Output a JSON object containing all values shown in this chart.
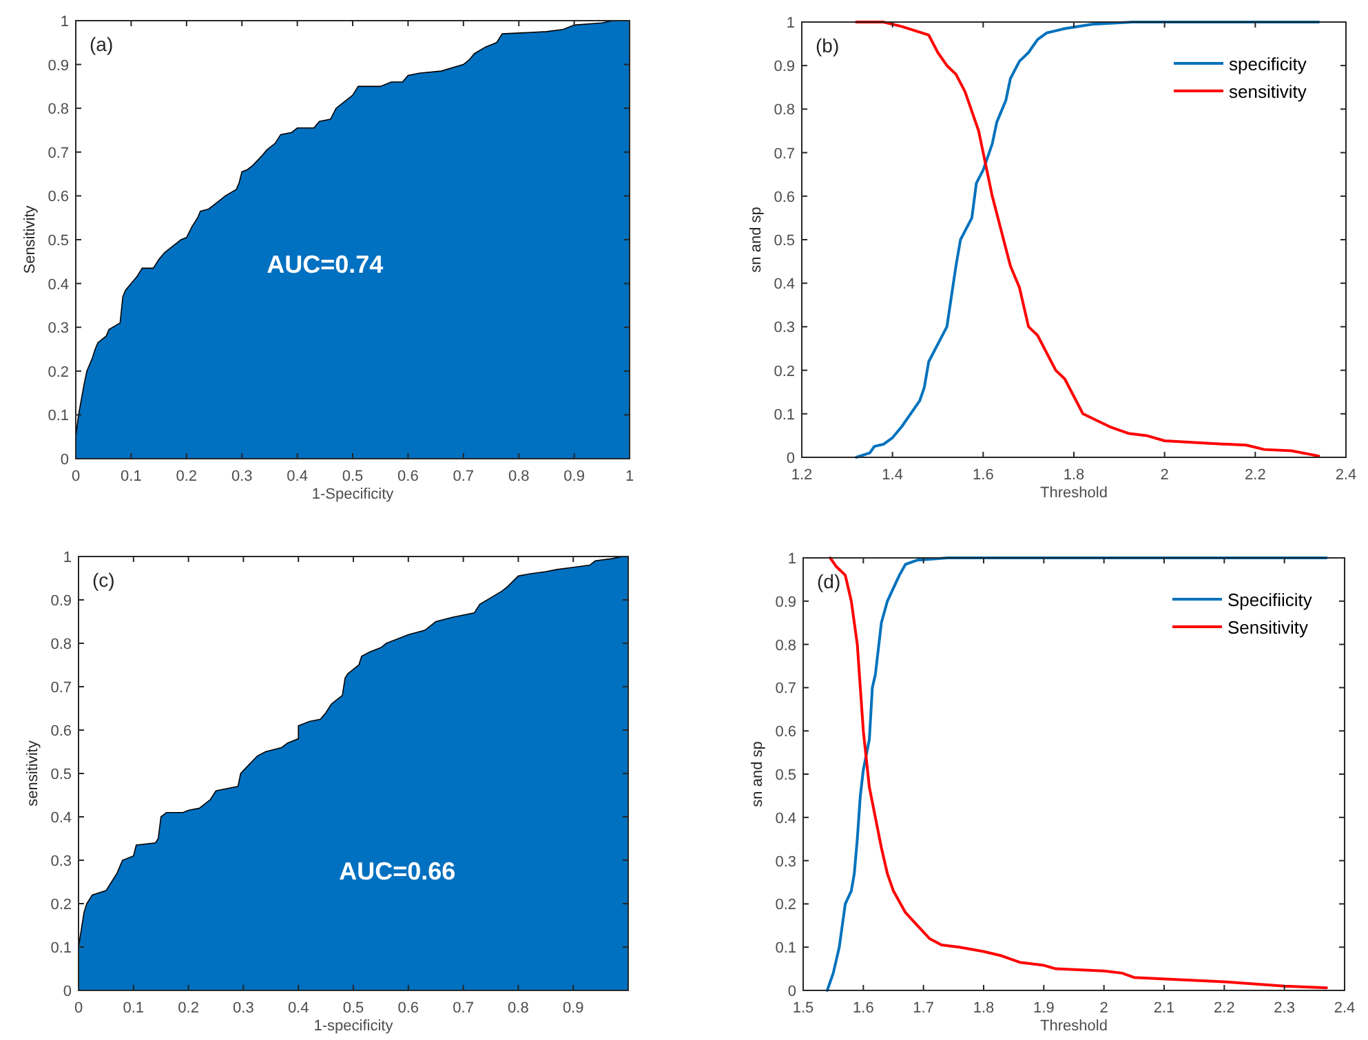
{
  "chart_data": [
    {
      "type": "area",
      "xlabel": "1-Specificity",
      "ylabel": "Sensitivity",
      "annotations": [
        "(a)",
        "AUC=0.74"
      ],
      "xlim": [
        0,
        1
      ],
      "ylim": [
        0,
        1
      ],
      "xticks": [
        0,
        0.1,
        0.2,
        0.3,
        0.4,
        0.5,
        0.6,
        0.7,
        0.8,
        0.9,
        1
      ],
      "yticks": [
        0,
        0.1,
        0.2,
        0.3,
        0.4,
        0.5,
        0.6,
        0.7,
        0.8,
        0.9,
        1
      ],
      "grid": false,
      "legend": false,
      "series": [
        {
          "color": "#0070c0",
          "x": [
            0,
            0,
            0.005,
            0.015,
            0.02,
            0.03,
            0.035,
            0.04,
            0.055,
            0.06,
            0.08,
            0.085,
            0.09,
            0.1,
            0.11,
            0.12,
            0.14,
            0.15,
            0.16,
            0.17,
            0.19,
            0.2,
            0.21,
            0.22,
            0.225,
            0.24,
            0.26,
            0.27,
            0.29,
            0.295,
            0.3,
            0.31,
            0.32,
            0.335,
            0.345,
            0.36,
            0.37,
            0.39,
            0.4,
            0.43,
            0.44,
            0.46,
            0.47,
            0.5,
            0.51,
            0.55,
            0.57,
            0.59,
            0.6,
            0.62,
            0.66,
            0.7,
            0.71,
            0.72,
            0.74,
            0.76,
            0.77,
            0.85,
            0.88,
            0.9,
            0.95,
            0.97,
            1
          ],
          "values": [
            0,
            0.05,
            0.1,
            0.17,
            0.2,
            0.23,
            0.25,
            0.265,
            0.28,
            0.295,
            0.31,
            0.37,
            0.385,
            0.4,
            0.415,
            0.435,
            0.435,
            0.455,
            0.47,
            0.48,
            0.5,
            0.505,
            0.53,
            0.55,
            0.565,
            0.57,
            0.59,
            0.6,
            0.615,
            0.63,
            0.655,
            0.66,
            0.67,
            0.69,
            0.705,
            0.72,
            0.74,
            0.745,
            0.755,
            0.755,
            0.77,
            0.775,
            0.8,
            0.83,
            0.85,
            0.85,
            0.86,
            0.86,
            0.875,
            0.88,
            0.885,
            0.9,
            0.91,
            0.925,
            0.94,
            0.95,
            0.97,
            0.975,
            0.98,
            0.99,
            0.995,
            1,
            1
          ]
        }
      ]
    },
    {
      "type": "line",
      "xlabel": "Threshold",
      "ylabel": "sn and sp",
      "annotations": [
        "(b)"
      ],
      "xlim": [
        1.2,
        2.4
      ],
      "ylim": [
        0,
        1
      ],
      "xticks": [
        1.2,
        1.4,
        1.6,
        1.8,
        2,
        2.2,
        2.4
      ],
      "yticks": [
        0,
        0.1,
        0.2,
        0.3,
        0.4,
        0.5,
        0.6,
        0.7,
        0.8,
        0.9,
        1
      ],
      "grid": false,
      "legend": "top right",
      "marker": "none",
      "line_style": "solid",
      "series": [
        {
          "name": "specificity",
          "color": "#0072bd",
          "x": [
            1.32,
            1.35,
            1.36,
            1.38,
            1.4,
            1.42,
            1.44,
            1.46,
            1.47,
            1.48,
            1.5,
            1.52,
            1.53,
            1.54,
            1.55,
            1.56,
            1.575,
            1.585,
            1.6,
            1.62,
            1.63,
            1.65,
            1.66,
            1.68,
            1.7,
            1.72,
            1.74,
            1.78,
            1.84,
            1.93,
            2.34
          ],
          "values": [
            0,
            0.01,
            0.025,
            0.03,
            0.045,
            0.07,
            0.1,
            0.13,
            0.16,
            0.22,
            0.26,
            0.3,
            0.37,
            0.44,
            0.5,
            0.52,
            0.55,
            0.63,
            0.66,
            0.72,
            0.77,
            0.82,
            0.87,
            0.91,
            0.93,
            0.96,
            0.975,
            0.985,
            0.995,
            1,
            1
          ]
        },
        {
          "name": "sensitivity",
          "color": "#ff0000",
          "x": [
            1.32,
            1.38,
            1.42,
            1.45,
            1.48,
            1.5,
            1.52,
            1.54,
            1.56,
            1.58,
            1.59,
            1.6,
            1.62,
            1.64,
            1.66,
            1.68,
            1.7,
            1.72,
            1.74,
            1.76,
            1.78,
            1.8,
            1.82,
            1.86,
            1.88,
            1.92,
            1.96,
            2,
            2.1,
            2.18,
            2.22,
            2.28,
            2.34
          ],
          "values": [
            1,
            1,
            0.99,
            0.98,
            0.97,
            0.93,
            0.9,
            0.88,
            0.84,
            0.78,
            0.75,
            0.7,
            0.6,
            0.52,
            0.44,
            0.39,
            0.3,
            0.28,
            0.24,
            0.2,
            0.18,
            0.14,
            0.1,
            0.08,
            0.07,
            0.055,
            0.05,
            0.038,
            0.032,
            0.028,
            0.018,
            0.015,
            0.003
          ]
        }
      ]
    },
    {
      "type": "area",
      "xlabel": "1-specificity",
      "ylabel": "sensitivity",
      "annotations": [
        "(c)",
        "AUC=0.66"
      ],
      "xlim": [
        0,
        1
      ],
      "ylim": [
        0,
        1
      ],
      "xticks": [
        0,
        0.1,
        0.2,
        0.3,
        0.4,
        0.5,
        0.6,
        0.7,
        0.8,
        0.9
      ],
      "yticks": [
        0,
        0.1,
        0.2,
        0.3,
        0.4,
        0.5,
        0.6,
        0.7,
        0.8,
        0.9,
        1
      ],
      "grid": false,
      "legend": false,
      "series": [
        {
          "color": "#0070c0",
          "x": [
            0,
            0,
            0.01,
            0.015,
            0.025,
            0.05,
            0.06,
            0.07,
            0.08,
            0.1,
            0.105,
            0.14,
            0.145,
            0.15,
            0.16,
            0.19,
            0.2,
            0.22,
            0.23,
            0.24,
            0.25,
            0.29,
            0.295,
            0.31,
            0.325,
            0.34,
            0.37,
            0.38,
            0.4,
            0.4,
            0.42,
            0.44,
            0.45,
            0.46,
            0.48,
            0.485,
            0.49,
            0.51,
            0.515,
            0.53,
            0.55,
            0.56,
            0.58,
            0.6,
            0.63,
            0.64,
            0.65,
            0.68,
            0.72,
            0.73,
            0.75,
            0.77,
            0.78,
            0.8,
            0.82,
            0.85,
            0.87,
            0.9,
            0.93,
            0.94,
            0.97,
            0.99,
            1
          ],
          "values": [
            0,
            0.1,
            0.18,
            0.2,
            0.22,
            0.23,
            0.25,
            0.27,
            0.3,
            0.31,
            0.335,
            0.34,
            0.35,
            0.4,
            0.41,
            0.41,
            0.415,
            0.42,
            0.43,
            0.44,
            0.46,
            0.47,
            0.5,
            0.52,
            0.54,
            0.55,
            0.56,
            0.57,
            0.58,
            0.61,
            0.62,
            0.625,
            0.64,
            0.66,
            0.68,
            0.72,
            0.73,
            0.75,
            0.77,
            0.78,
            0.79,
            0.8,
            0.81,
            0.82,
            0.83,
            0.84,
            0.85,
            0.86,
            0.87,
            0.89,
            0.905,
            0.92,
            0.93,
            0.955,
            0.96,
            0.965,
            0.97,
            0.975,
            0.98,
            0.99,
            0.995,
            1,
            1
          ]
        }
      ]
    },
    {
      "type": "line",
      "xlabel": "Threshold",
      "ylabel": "sn and sp",
      "annotations": [
        "(d)"
      ],
      "xlim": [
        1.5,
        2.4
      ],
      "ylim": [
        0,
        1
      ],
      "xticks": [
        1.5,
        1.6,
        1.7,
        1.8,
        1.9,
        2,
        2.1,
        2.2,
        2.3,
        2.4
      ],
      "yticks": [
        0,
        0.1,
        0.2,
        0.3,
        0.4,
        0.5,
        0.6,
        0.7,
        0.8,
        0.9,
        1
      ],
      "grid": false,
      "legend": "top right",
      "marker": "none",
      "line_style": "solid",
      "series": [
        {
          "name": "Specifiicity",
          "color": "#0072bd",
          "x": [
            1.54,
            1.55,
            1.56,
            1.565,
            1.57,
            1.58,
            1.585,
            1.59,
            1.595,
            1.6,
            1.61,
            1.615,
            1.62,
            1.63,
            1.64,
            1.65,
            1.66,
            1.67,
            1.69,
            1.74,
            2.37
          ],
          "values": [
            0,
            0.04,
            0.1,
            0.15,
            0.2,
            0.23,
            0.27,
            0.35,
            0.45,
            0.51,
            0.58,
            0.7,
            0.73,
            0.85,
            0.9,
            0.93,
            0.96,
            0.985,
            0.995,
            1,
            1
          ]
        },
        {
          "name": "Sensitivity",
          "color": "#ff0000",
          "x": [
            1.545,
            1.555,
            1.57,
            1.58,
            1.59,
            1.6,
            1.61,
            1.62,
            1.63,
            1.64,
            1.65,
            1.67,
            1.69,
            1.71,
            1.73,
            1.76,
            1.8,
            1.83,
            1.86,
            1.9,
            1.92,
            2,
            2.03,
            2.05,
            2.2,
            2.3,
            2.37
          ],
          "values": [
            1,
            0.98,
            0.96,
            0.9,
            0.8,
            0.6,
            0.47,
            0.4,
            0.33,
            0.27,
            0.23,
            0.18,
            0.15,
            0.12,
            0.105,
            0.1,
            0.09,
            0.08,
            0.065,
            0.058,
            0.05,
            0.045,
            0.04,
            0.03,
            0.02,
            0.01,
            0.006
          ]
        }
      ]
    }
  ]
}
